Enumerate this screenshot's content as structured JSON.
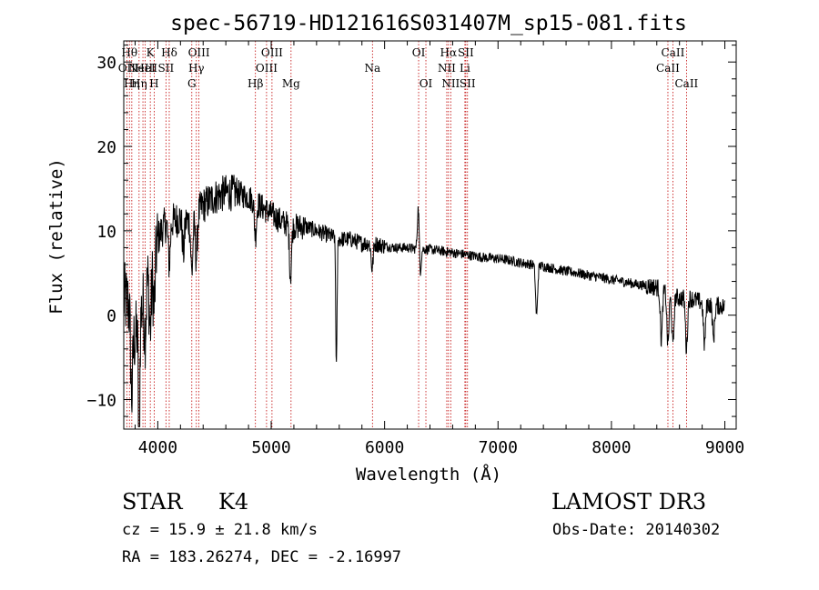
{
  "chart_data": {
    "type": "line",
    "title": "spec-56719-HD121616S031407M_sp15-081.fits",
    "xlabel": "Wavelength (Å)",
    "ylabel": "Flux (relative)",
    "xlim": [
      3700,
      9100
    ],
    "ylim": [
      -13.5,
      32.5
    ],
    "xticks": [
      4000,
      5000,
      6000,
      7000,
      8000,
      9000
    ],
    "xtick_labels": [
      "4000",
      "5000",
      "6000",
      "7000",
      "8000",
      "9000"
    ],
    "yticks": [
      -10,
      0,
      10,
      20,
      30
    ],
    "ytick_labels": [
      "−10",
      "0",
      "10",
      "20",
      "30"
    ],
    "grid": false,
    "series": [
      {
        "name": "spectrum",
        "anchors_x": [
          3700,
          3750,
          3800,
          3850,
          3900,
          3950,
          4000,
          4050,
          4100,
          4200,
          4300,
          4400,
          4500,
          4600,
          4700,
          4800,
          4850,
          4900,
          5000,
          5100,
          5200,
          5300,
          5400,
          5500,
          5600,
          5700,
          5800,
          5900,
          6000,
          6100,
          6200,
          6300,
          6400,
          6500,
          6600,
          6700,
          6800,
          6900,
          7000,
          7100,
          7200,
          7300,
          7400,
          7500,
          7600,
          7700,
          7800,
          7900,
          8000,
          8100,
          8200,
          8300,
          8400,
          8450,
          8500,
          8600,
          8700,
          8800,
          8900,
          9000
        ],
        "anchors_y": [
          2,
          1,
          -3,
          0,
          4,
          6,
          9,
          10.5,
          11,
          11.5,
          11,
          13,
          14,
          14.5,
          14.5,
          14,
          13.5,
          13,
          12,
          11,
          10.5,
          10.5,
          10,
          9.5,
          9,
          9,
          8.5,
          8.5,
          8.2,
          8,
          8,
          7.8,
          7.8,
          7.6,
          7.4,
          7.2,
          7,
          6.8,
          6.7,
          6.5,
          6.2,
          6,
          5.8,
          5.5,
          5.2,
          5,
          4.7,
          4.5,
          4.2,
          4,
          3.7,
          3.5,
          3.3,
          3,
          2.5,
          2,
          2,
          1.5,
          1.2,
          1
        ],
        "features": [
          {
            "x": 3770,
            "depth": 9
          },
          {
            "x": 3835,
            "depth": 17
          },
          {
            "x": 3889,
            "depth": 5
          },
          {
            "x": 3934,
            "depth": 7
          },
          {
            "x": 3968,
            "depth": 6
          },
          {
            "x": 4101,
            "depth": 5
          },
          {
            "x": 4226,
            "depth": 4
          },
          {
            "x": 4300,
            "depth": 6
          },
          {
            "x": 4340,
            "depth": 5
          },
          {
            "x": 4861,
            "depth": 4
          },
          {
            "x": 5170,
            "depth": 6
          },
          {
            "x": 5575,
            "depth": 15
          },
          {
            "x": 5890,
            "depth": 3
          },
          {
            "x": 6300,
            "depth": -7
          },
          {
            "x": 6310,
            "depth": 5
          },
          {
            "x": 7340,
            "depth": 6
          },
          {
            "x": 8440,
            "depth": 6
          },
          {
            "x": 8498,
            "depth": 6
          },
          {
            "x": 8542,
            "depth": 6
          },
          {
            "x": 8662,
            "depth": 6
          },
          {
            "x": 8820,
            "depth": 5
          },
          {
            "x": 8900,
            "depth": 4
          }
        ]
      }
    ],
    "line_markers": [
      {
        "x": 3727,
        "labels": [
          "OII"
        ],
        "row": 2
      },
      {
        "x": 3750,
        "labels": [
          "Hθ"
        ],
        "row": 1
      },
      {
        "x": 3771,
        "labels": [
          "Hη"
        ],
        "row": 3
      },
      {
        "x": 3835,
        "labels": [
          "Hη"
        ],
        "row": 3
      },
      {
        "x": 3869,
        "labels": [
          "NeIII"
        ],
        "row": 2
      },
      {
        "x": 3889,
        "labels": [
          "HeI"
        ],
        "row": 2
      },
      {
        "x": 3934,
        "labels": [
          "K"
        ],
        "row": 1
      },
      {
        "x": 3968,
        "labels": [
          "H"
        ],
        "row": 3
      },
      {
        "x": 4072,
        "labels": [
          "SII"
        ],
        "row": 2
      },
      {
        "x": 4101,
        "labels": [
          "Hδ"
        ],
        "row": 1
      },
      {
        "x": 4300,
        "labels": [
          "G"
        ],
        "row": 3
      },
      {
        "x": 4340,
        "labels": [
          "Hγ"
        ],
        "row": 2
      },
      {
        "x": 4363,
        "labels": [
          "OIII"
        ],
        "row": 1
      },
      {
        "x": 4861,
        "labels": [
          "Hβ"
        ],
        "row": 3
      },
      {
        "x": 4959,
        "labels": [
          "OIII"
        ],
        "row": 2
      },
      {
        "x": 5007,
        "labels": [
          "OIII"
        ],
        "row": 1
      },
      {
        "x": 5175,
        "labels": [
          "Mg"
        ],
        "row": 3
      },
      {
        "x": 5893,
        "labels": [
          "Na"
        ],
        "row": 2
      },
      {
        "x": 6300,
        "labels": [
          "OI"
        ],
        "row": 1
      },
      {
        "x": 6364,
        "labels": [
          "OI"
        ],
        "row": 3
      },
      {
        "x": 6548,
        "labels": [
          "NII"
        ],
        "row": 2
      },
      {
        "x": 6563,
        "labels": [
          "Hα"
        ],
        "row": 1
      },
      {
        "x": 6583,
        "labels": [
          "NII"
        ],
        "row": 3
      },
      {
        "x": 6708,
        "labels": [
          "Li"
        ],
        "row": 2
      },
      {
        "x": 6716,
        "labels": [
          "SII"
        ],
        "row": 1
      },
      {
        "x": 6731,
        "labels": [
          "SII"
        ],
        "row": 3
      },
      {
        "x": 8498,
        "labels": [
          "CaII"
        ],
        "row": 2
      },
      {
        "x": 8542,
        "labels": [
          "CaII"
        ],
        "row": 1
      },
      {
        "x": 8662,
        "labels": [
          "CaII"
        ],
        "row": 3
      }
    ]
  },
  "info": {
    "object_class": "STAR",
    "subclass": "K4",
    "survey": "LAMOST DR3",
    "cz_text": "cz = 15.9 ± 21.8 km/s",
    "obs_date": "Obs-Date: 20140302",
    "coords": "RA = 183.26274, DEC =  -2.16997"
  },
  "colors": {
    "spectrum": "#000000",
    "marker_line": "#c00000",
    "axis": "#000000"
  }
}
